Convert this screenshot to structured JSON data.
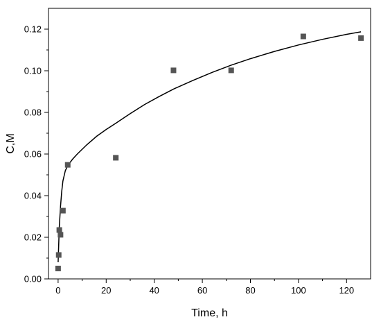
{
  "chart_data": {
    "type": "scatter",
    "title": "",
    "xlabel": "Time, h",
    "ylabel": "C,M",
    "xlim": [
      -4,
      130
    ],
    "ylim": [
      0,
      0.13
    ],
    "x_ticks": [
      0,
      20,
      40,
      60,
      80,
      100,
      120
    ],
    "y_ticks": [
      0.0,
      0.02,
      0.04,
      0.06,
      0.08,
      0.1,
      0.12
    ],
    "x_tick_labels": [
      "0",
      "20",
      "40",
      "60",
      "80",
      "100",
      "120"
    ],
    "y_tick_labels": [
      "0.00",
      "0.02",
      "0.04",
      "0.06",
      "0.08",
      "0.10",
      "0.12"
    ],
    "grid": false,
    "legend": "none",
    "series": [
      {
        "kind": "points",
        "marker": "square",
        "color": "#555555",
        "x": [
          0,
          0.25,
          0.5,
          1,
          2,
          4,
          24,
          48,
          72,
          102,
          126
        ],
        "y": [
          0.005,
          0.0115,
          0.0235,
          0.0212,
          0.0328,
          0.0548,
          0.0582,
          0.1002,
          0.1002,
          0.1165,
          0.1157
        ]
      },
      {
        "kind": "fit-line",
        "color": "#000000",
        "x": [
          0,
          0.5,
          1,
          1.5,
          2,
          3,
          4,
          6,
          8,
          12,
          16,
          20,
          24,
          30,
          36,
          42,
          48,
          56,
          64,
          72,
          80,
          90,
          100,
          110,
          120,
          126
        ],
        "y": [
          0.008,
          0.025,
          0.035,
          0.042,
          0.047,
          0.052,
          0.0545,
          0.0575,
          0.06,
          0.0645,
          0.0685,
          0.0718,
          0.0748,
          0.0794,
          0.0838,
          0.0876,
          0.0912,
          0.0953,
          0.0992,
          0.1027,
          0.1058,
          0.1093,
          0.1124,
          0.1151,
          0.1175,
          0.1187
        ]
      }
    ]
  }
}
